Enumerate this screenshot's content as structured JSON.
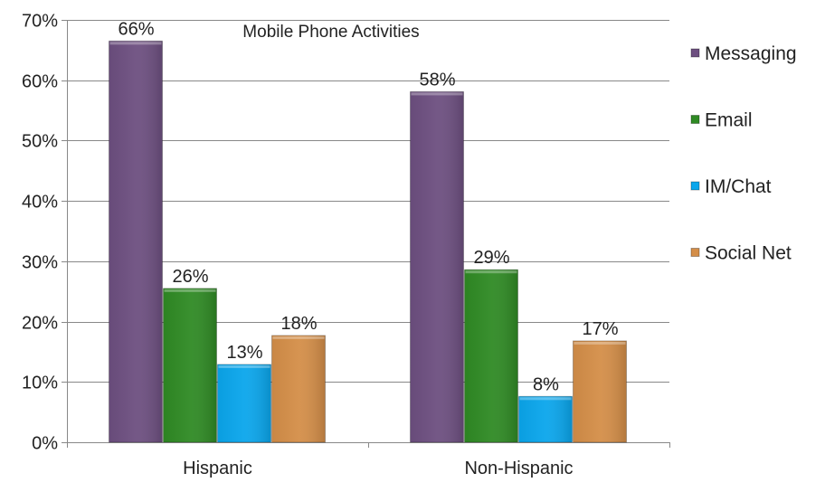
{
  "chart_data": {
    "type": "bar",
    "title": "Mobile Phone Activities",
    "categories": [
      "Hispanic",
      "Non-Hispanic"
    ],
    "series": [
      {
        "name": "Messaging",
        "values": [
          66.5,
          58.1
        ],
        "labels": [
          "66%",
          "58%"
        ],
        "color": "#6d4f80"
      },
      {
        "name": "Email",
        "values": [
          25.5,
          28.6
        ],
        "labels": [
          "26%",
          "29%"
        ],
        "color": "#2f8a24"
      },
      {
        "name": "IM/Chat",
        "values": [
          12.9,
          7.6
        ],
        "labels": [
          "13%",
          "8%"
        ],
        "color": "#0aa6ec"
      },
      {
        "name": "Social Net",
        "values": [
          17.7,
          16.8
        ],
        "labels": [
          "18%",
          "17%"
        ],
        "color": "#d48e48"
      }
    ],
    "ylim": [
      0,
      70
    ],
    "yticks": [
      0,
      10,
      20,
      30,
      40,
      50,
      60,
      70
    ],
    "ytick_labels": [
      "0%",
      "10%",
      "20%",
      "30%",
      "40%",
      "50%",
      "60%",
      "70%"
    ],
    "xlabel": "",
    "ylabel": "",
    "grid": true,
    "legend_position": "right"
  }
}
